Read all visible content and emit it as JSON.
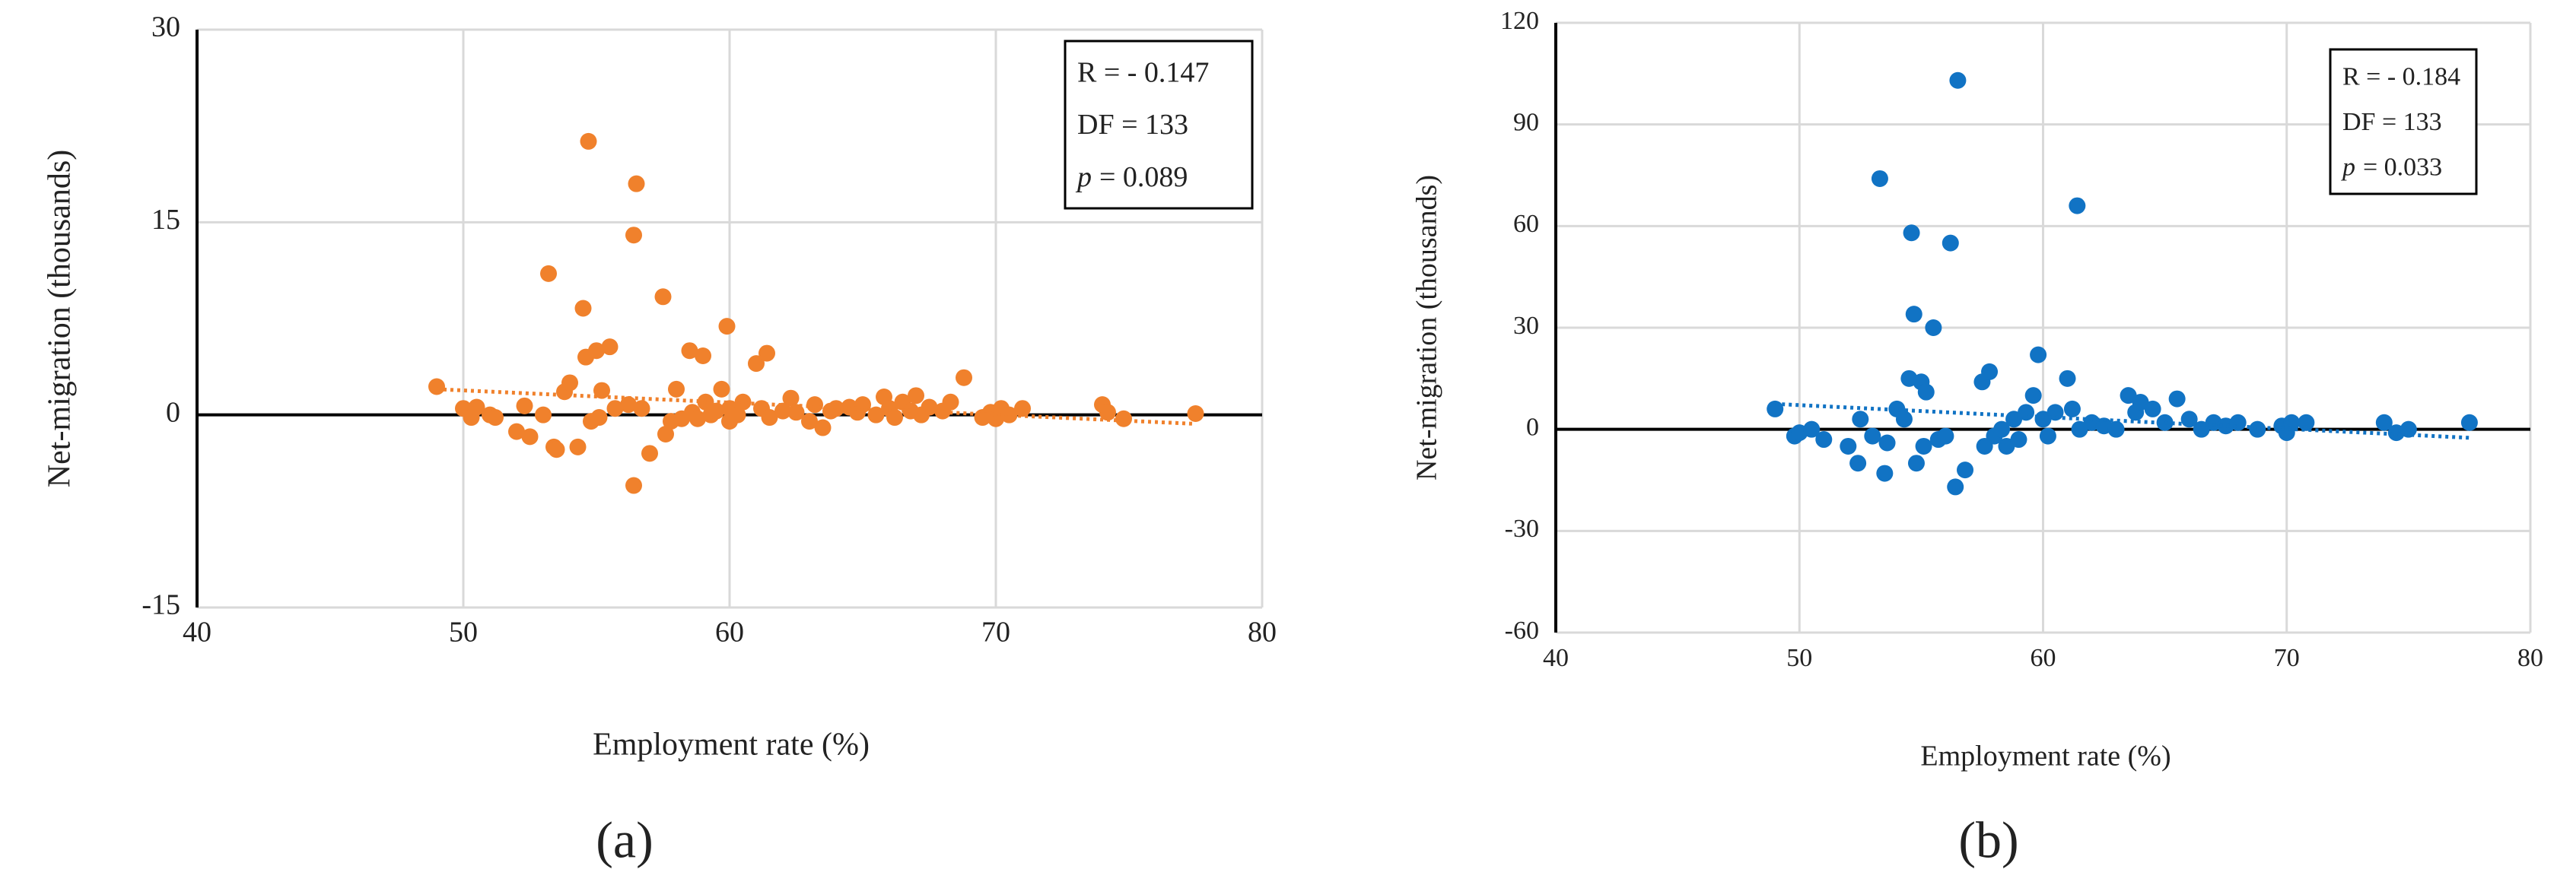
{
  "chart_data": [
    {
      "type": "scatter",
      "panel_label": "(a)",
      "x_label": "Employment rate (%)",
      "y_label": "Net-migration (thousands)",
      "xlim": [
        40,
        80
      ],
      "xticks": [
        40,
        50,
        60,
        70,
        80
      ],
      "ylim": [
        -15,
        30
      ],
      "yticks": [
        -15,
        0,
        15,
        30
      ],
      "grid": true,
      "stats": [
        "R = - 0.147",
        "DF = 133"
      ],
      "p_stat": {
        "symbol": "p",
        "text": "= 0.089"
      },
      "series": [
        {
          "color": "#f0812c",
          "x": [
            49,
            50,
            50.3,
            50.5,
            51,
            51.2,
            52,
            52.3,
            52.5,
            53,
            53.2,
            53.4,
            53.5,
            53.8,
            54,
            54.3,
            54.5,
            54.6,
            54.7,
            54.8,
            55,
            55.1,
            55.2,
            55.5,
            55.7,
            56.2,
            56.4,
            56.4,
            56.5,
            56.7,
            57,
            57.5,
            57.6,
            57.8,
            58,
            58.2,
            58.5,
            58.6,
            58.8,
            59,
            59.1,
            59.3,
            59.5,
            59.7,
            59.9,
            60,
            60,
            60.3,
            60.5,
            61,
            61.2,
            61.4,
            61.5,
            62,
            62.3,
            62.5,
            63,
            63.2,
            63.5,
            63.8,
            64,
            64.5,
            64.8,
            65,
            65.5,
            65.8,
            66,
            66.2,
            66.5,
            66.8,
            67,
            67.2,
            67.5,
            68,
            68.3,
            68.8,
            69.5,
            69.8,
            70,
            70.2,
            70.5,
            71,
            74,
            74.2,
            74.8,
            77.5
          ],
          "values": [
            2.2,
            0.5,
            -0.2,
            0.6,
            0,
            -0.2,
            -1.3,
            0.7,
            -1.7,
            0,
            11,
            -2.5,
            -2.7,
            1.8,
            2.5,
            -2.5,
            8.3,
            4.5,
            21.3,
            -0.5,
            5,
            -0.2,
            1.9,
            5.3,
            0.5,
            0.8,
            14,
            -5.5,
            18,
            0.5,
            -3,
            9.2,
            -1.5,
            -0.5,
            2,
            -0.3,
            5,
            0.2,
            -0.3,
            4.6,
            1,
            0,
            0.3,
            2,
            6.9,
            0.5,
            -0.5,
            0,
            1,
            4,
            0.5,
            4.8,
            -0.2,
            0.3,
            1.3,
            0.2,
            -0.5,
            0.8,
            -1,
            0.3,
            0.5,
            0.6,
            0.2,
            0.8,
            0,
            1.4,
            0.5,
            -0.2,
            1,
            0.3,
            1.5,
            0,
            0.6,
            0.3,
            1,
            2.9,
            -0.2,
            0.2,
            -0.3,
            0.5,
            0,
            0.5,
            0.8,
            0.2,
            -0.3,
            0.1
          ]
        }
      ],
      "trendline": {
        "x": [
          49,
          77.5
        ],
        "y": [
          2,
          -0.7
        ]
      }
    },
    {
      "type": "scatter",
      "panel_label": "(b)",
      "x_label": "Employment rate (%)",
      "y_label": "Net-migration (thousands)",
      "xlim": [
        40,
        80
      ],
      "xticks": [
        40,
        50,
        60,
        70,
        80
      ],
      "ylim": [
        -60,
        120
      ],
      "yticks": [
        -60,
        -30,
        0,
        30,
        60,
        90,
        120
      ],
      "grid": true,
      "stats": [
        "R = - 0.184",
        "DF = 133"
      ],
      "p_stat": {
        "symbol": "p",
        "text": "= 0.033"
      },
      "series": [
        {
          "color": "#1173c4",
          "x": [
            49,
            49.8,
            50,
            50.5,
            51,
            52,
            52.4,
            52.5,
            53,
            53.3,
            53.5,
            53.6,
            54,
            54.3,
            54.5,
            54.6,
            54.7,
            54.8,
            55,
            55.1,
            55.2,
            55.5,
            55.7,
            56,
            56.2,
            56.4,
            56.5,
            56.8,
            57.5,
            57.6,
            57.8,
            58,
            58.3,
            58.5,
            58.8,
            59,
            59.3,
            59.6,
            59.8,
            60,
            60.2,
            60.5,
            61,
            61.2,
            61.4,
            61.5,
            62,
            62.5,
            63,
            63.5,
            63.8,
            64,
            64.5,
            65,
            65.5,
            66,
            66.5,
            67,
            67.5,
            68,
            68.8,
            69.8,
            70,
            70.2,
            70.8,
            74,
            74.5,
            75,
            77.5
          ],
          "values": [
            6,
            -2,
            -1,
            0,
            -3,
            -5,
            -10,
            3,
            -2,
            74,
            -13,
            -4,
            6,
            3,
            15,
            58,
            34,
            -10,
            14,
            -5,
            11,
            30,
            -3,
            -2,
            55,
            -17,
            103,
            -12,
            14,
            -5,
            17,
            -2,
            0,
            -5,
            3,
            -3,
            5,
            10,
            22,
            3,
            -2,
            5,
            15,
            6,
            66,
            0,
            2,
            1,
            0,
            10,
            5,
            8,
            6,
            2,
            9,
            3,
            0,
            2,
            1,
            2,
            0,
            1,
            -1,
            2,
            2,
            2,
            -1,
            0,
            2
          ]
        }
      ],
      "trendline": {
        "x": [
          49,
          77.5
        ],
        "y": [
          7.5,
          -2.5
        ]
      }
    }
  ]
}
